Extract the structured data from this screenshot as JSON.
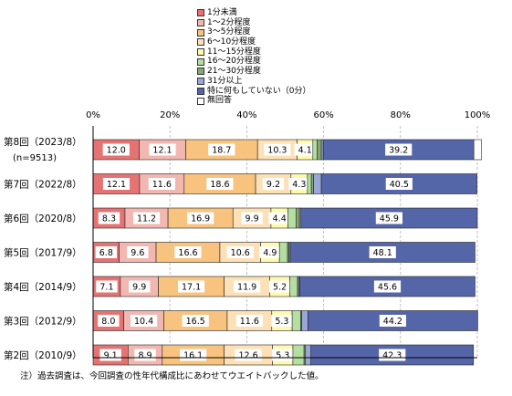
{
  "legend": [
    {
      "label": "1分未満",
      "color": "#e67373"
    },
    {
      "label": "1～2分程度",
      "color": "#f2b7b0"
    },
    {
      "label": "3～5分程度",
      "color": "#f7c37f"
    },
    {
      "label": "6～10分程度",
      "color": "#fde0b5"
    },
    {
      "label": "11～15分程度",
      "color": "#fdfaae"
    },
    {
      "label": "16～20分程度",
      "color": "#b5dfa0"
    },
    {
      "label": "21～30分程度",
      "color": "#86a873"
    },
    {
      "label": "31分以上",
      "color": "#9aa7d6"
    },
    {
      "label": "特に何もしていない（0分）",
      "color": "#5566a8"
    },
    {
      "label": "無回答",
      "color": "#ffffff"
    }
  ],
  "chart_data": {
    "type": "bar",
    "orientation": "horizontal",
    "stacked": "percent",
    "xlim": [
      0,
      100
    ],
    "x_ticks": [
      "0%",
      "20%",
      "40%",
      "60%",
      "80%",
      "100%"
    ],
    "categories": [
      "第8回（2023/8）",
      "第7回（2022/8）",
      "第6回（2020/8）",
      "第5回（2017/9）",
      "第4回（2014/9）",
      "第3回（2012/9）",
      "第2回（2010/9）"
    ],
    "category_notes": [
      "(n=9513)",
      "",
      "",
      "",
      "",
      "",
      ""
    ],
    "series": [
      {
        "name": "1分未満",
        "values": [
          12.0,
          12.1,
          8.3,
          6.8,
          7.1,
          8.0,
          9.1
        ]
      },
      {
        "name": "1～2分程度",
        "values": [
          12.1,
          11.6,
          11.2,
          9.6,
          9.9,
          10.4,
          8.9
        ]
      },
      {
        "name": "3～5分程度",
        "values": [
          18.7,
          18.6,
          16.9,
          16.6,
          17.1,
          16.5,
          16.1
        ]
      },
      {
        "name": "6～10分程度",
        "values": [
          10.3,
          9.2,
          9.9,
          10.6,
          11.9,
          11.6,
          12.6
        ]
      },
      {
        "name": "11～15分程度",
        "values": [
          4.1,
          4.3,
          4.4,
          4.9,
          5.2,
          5.3,
          5.3
        ]
      },
      {
        "name": "16～20分程度",
        "values": [
          1.1,
          1.0,
          2.1,
          2.1,
          2.0,
          2.2,
          2.9
        ]
      },
      {
        "name": "21～30分程度",
        "values": [
          1.1,
          0.6,
          0.9,
          0.4,
          0.3,
          0.3,
          0.3
        ]
      },
      {
        "name": "31分以上",
        "values": [
          0.5,
          2.0,
          0.4,
          0.3,
          0.3,
          1.6,
          1.5
        ]
      },
      {
        "name": "特に何もしていない（0分）",
        "values": [
          39.2,
          40.5,
          45.9,
          48.1,
          45.6,
          44.2,
          42.3
        ]
      },
      {
        "name": "無回答",
        "values": [
          2.0,
          0.0,
          0.0,
          0.0,
          0.0,
          0.0,
          0.0
        ]
      }
    ]
  },
  "footnote": "注）過去調査は、今回調査の性年代構成比にあわせてウエイトバックした値。"
}
